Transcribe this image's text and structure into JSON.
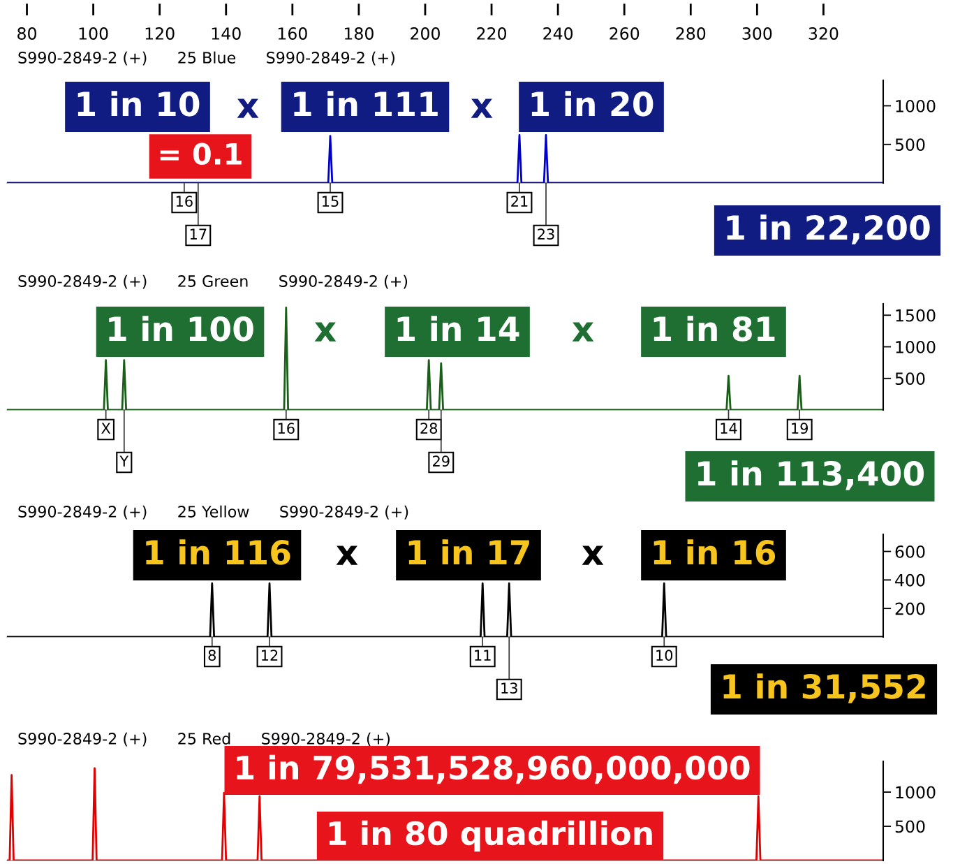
{
  "chart_data": [
    {
      "type": "line",
      "title": "S990-2849-2 (+)      25 Blue      S990-2849-2 (+)",
      "xlim": [
        74,
        338
      ],
      "ylim": [
        0,
        1330
      ],
      "yticks": [
        500,
        1000
      ],
      "xticks": [
        80,
        100,
        120,
        140,
        160,
        180,
        200,
        220,
        240,
        260,
        280,
        300,
        320
      ],
      "series": [
        {
          "color": "#0000cc",
          "x": [
            74,
            170.8,
            171.4,
            172.0,
            227.8,
            228.4,
            229.0,
            235.8,
            236.4,
            237.0,
            338
          ],
          "values": [
            0,
            0,
            610,
            0,
            0,
            620,
            0,
            0,
            620,
            0,
            0
          ]
        }
      ],
      "annotations": [
        "1 in 10",
        "x",
        "1 in 111",
        "x",
        "1 in 20",
        "= 0.1",
        "1 in 22,200",
        {
          "text": "16",
          "x": 127.4,
          "y": 0
        },
        {
          "text": "17",
          "x": 131.6,
          "y": 0
        },
        {
          "text": "15",
          "x": 171.4,
          "y": 0
        },
        {
          "text": "21",
          "x": 228.4,
          "y": 0
        },
        {
          "text": "23",
          "x": 236.4,
          "y": 0
        }
      ]
    },
    {
      "type": "line",
      "title": "S990-2849-2 (+)      25 Green      S990-2849-2 (+)",
      "xlim": [
        74,
        338
      ],
      "ylim": [
        0,
        1680
      ],
      "yticks": [
        500,
        1000,
        1500
      ],
      "tick_labels": "y",
      "series": [
        {
          "color": "#1a5e1a",
          "x": [
            74,
            103.2,
            103.8,
            104.4,
            108.7,
            109.3,
            109.9,
            157.5,
            158.1,
            158.7,
            200.5,
            201.1,
            201.7,
            204.2,
            204.8,
            205.4,
            290.8,
            291.4,
            292.0,
            312.2,
            312.8,
            313.4,
            338
          ],
          "values": [
            0,
            0,
            790,
            0,
            0,
            790,
            0,
            0,
            1620,
            0,
            0,
            790,
            0,
            0,
            740,
            0,
            0,
            540,
            0,
            0,
            540,
            0,
            0
          ]
        }
      ],
      "annotations": [
        "1 in 100",
        "x",
        "1 in 14",
        "x",
        "1 in 81",
        "1 in 113,400",
        {
          "text": "X",
          "x": 103.8,
          "y": 0
        },
        {
          "text": "Y",
          "x": 109.3,
          "y": 0
        },
        {
          "text": "16",
          "x": 158.1,
          "y": 0
        },
        {
          "text": "28",
          "x": 201.1,
          "y": 0
        },
        {
          "text": "29",
          "x": 204.8,
          "y": 0
        },
        {
          "text": "14",
          "x": 291.4,
          "y": 0
        },
        {
          "text": "19",
          "x": 312.8,
          "y": 0
        }
      ]
    },
    {
      "type": "line",
      "title": "S990-2849-2 (+)      25 Yellow      S990-2849-2 (+)",
      "xlim": [
        74,
        338
      ],
      "ylim": [
        0,
        720
      ],
      "yticks": [
        200,
        400,
        600
      ],
      "tick_labels": "y",
      "series": [
        {
          "color": "#000000",
          "x": [
            74,
            135.2,
            135.8,
            136.4,
            152.5,
            153.1,
            153.7,
            216.7,
            217.3,
            217.9,
            224.7,
            225.3,
            225.9,
            271.4,
            272.0,
            272.6,
            338
          ],
          "values": [
            0,
            0,
            376,
            0,
            0,
            376,
            0,
            0,
            376,
            0,
            0,
            376,
            0,
            0,
            376,
            0,
            0
          ]
        }
      ],
      "annotations": [
        "1 in 116",
        "x",
        "1 in 17",
        "x",
        "1 in 16",
        "1 in 31,552",
        {
          "text": "8",
          "x": 135.8,
          "y": 0
        },
        {
          "text": "12",
          "x": 153.1,
          "y": 0
        },
        {
          "text": "11",
          "x": 217.3,
          "y": 0
        },
        {
          "text": "13",
          "x": 225.3,
          "y": 0
        },
        {
          "text": "10",
          "x": 272.0,
          "y": 0
        }
      ]
    },
    {
      "type": "line",
      "title": "S990-2849-2 (+)      25 Red      S990-2849-2 (+)",
      "xlim": [
        74,
        338
      ],
      "ylim": [
        0,
        1450
      ],
      "yticks": [
        500,
        1000
      ],
      "tick_labels": "y",
      "series": [
        {
          "color": "#e00000",
          "x": [
            74,
            74.8,
            75.4,
            76.0,
            99.8,
            100.4,
            101.0,
            138.8,
            139.4,
            140.0,
            149.5,
            150.1,
            150.7,
            299.8,
            300.4,
            301.0,
            338
          ],
          "values": [
            0,
            0,
            1250,
            0,
            0,
            1350,
            0,
            0,
            990,
            0,
            0,
            940,
            0,
            0,
            940,
            0,
            0
          ]
        }
      ],
      "annotations": [
        "1 in 79,531,528,960,000,000",
        "1 in 80 quadrillion"
      ]
    }
  ]
}
